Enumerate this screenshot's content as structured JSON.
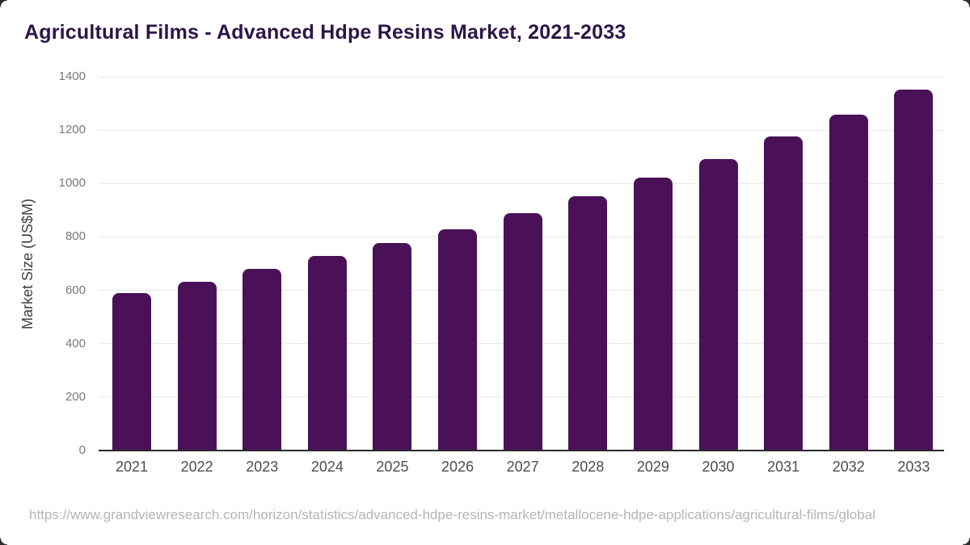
{
  "header": {
    "title": "Agricultural Films - Advanced Hdpe Resins Market, 2021-2033"
  },
  "source": {
    "url": "https://www.grandviewresearch.com/horizon/statistics/advanced-hdpe-resins-market/metallocene-hdpe-applications/agricultural-films/global"
  },
  "colors": {
    "bar": "#4a1158",
    "title": "#2d1547",
    "axis_line": "#2b2b2b",
    "gridline": "#e7e7e7",
    "y_tick": "#787878",
    "x_tick": "#4d4d4d",
    "y_axis_title": "#404040",
    "source": "#b5b5b5"
  },
  "chart_data": {
    "type": "bar",
    "title": "Agricultural Films - Advanced Hdpe Resins Market, 2021-2033",
    "categories": [
      "2021",
      "2022",
      "2023",
      "2024",
      "2025",
      "2026",
      "2027",
      "2028",
      "2029",
      "2030",
      "2031",
      "2032",
      "2033"
    ],
    "values": [
      590,
      632,
      679,
      728,
      777,
      830,
      890,
      951,
      1021,
      1093,
      1175,
      1259,
      1353
    ],
    "xlabel": "",
    "ylabel": "Market Size (US$M)",
    "ylim": [
      0,
      1400
    ],
    "ytick_step": 200,
    "grid": true,
    "legend": false
  }
}
